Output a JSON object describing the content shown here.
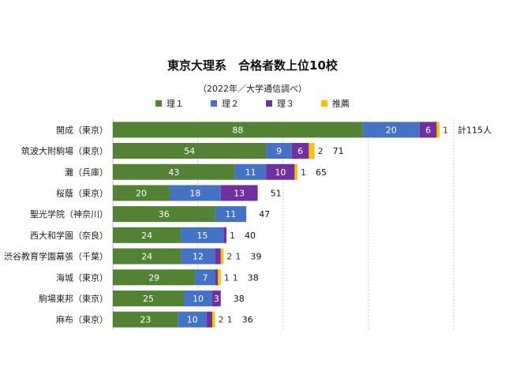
{
  "chart_data": {
    "type": "bar",
    "orientation": "horizontal",
    "stacked": true,
    "title": "東京大理系　合格者数上位10校",
    "subtitle": "（2022年／大学通信調べ）",
    "categories": [
      "開成（東京）",
      "筑波大附駒場（東京）",
      "灘（兵庫）",
      "桜蔭（東京）",
      "聖光学院（神奈川）",
      "西大和学園（奈良）",
      "渋谷教育学園幕張（千葉）",
      "海城（東京）",
      "駒場東邦（東京）",
      "麻布（東京）"
    ],
    "series": [
      {
        "name": "理１",
        "color": "#548235",
        "values": [
          88,
          54,
          43,
          20,
          36,
          24,
          24,
          29,
          25,
          23
        ]
      },
      {
        "name": "理２",
        "color": "#4472C4",
        "values": [
          20,
          9,
          11,
          18,
          11,
          15,
          12,
          7,
          10,
          10
        ]
      },
      {
        "name": "理３",
        "color": "#7030A0",
        "values": [
          6,
          6,
          10,
          13,
          0,
          1,
          2,
          1,
          3,
          2
        ]
      },
      {
        "name": "推薦",
        "color": "#FFC000",
        "values": [
          1,
          2,
          1,
          0,
          0,
          0,
          1,
          1,
          0,
          1
        ]
      }
    ],
    "totals": [
      "計115人",
      "71",
      "65",
      "51",
      "47",
      "40",
      "39",
      "38",
      "38",
      "36"
    ],
    "xlim": [
      0,
      120
    ],
    "grid": true,
    "legend_position": "top"
  }
}
